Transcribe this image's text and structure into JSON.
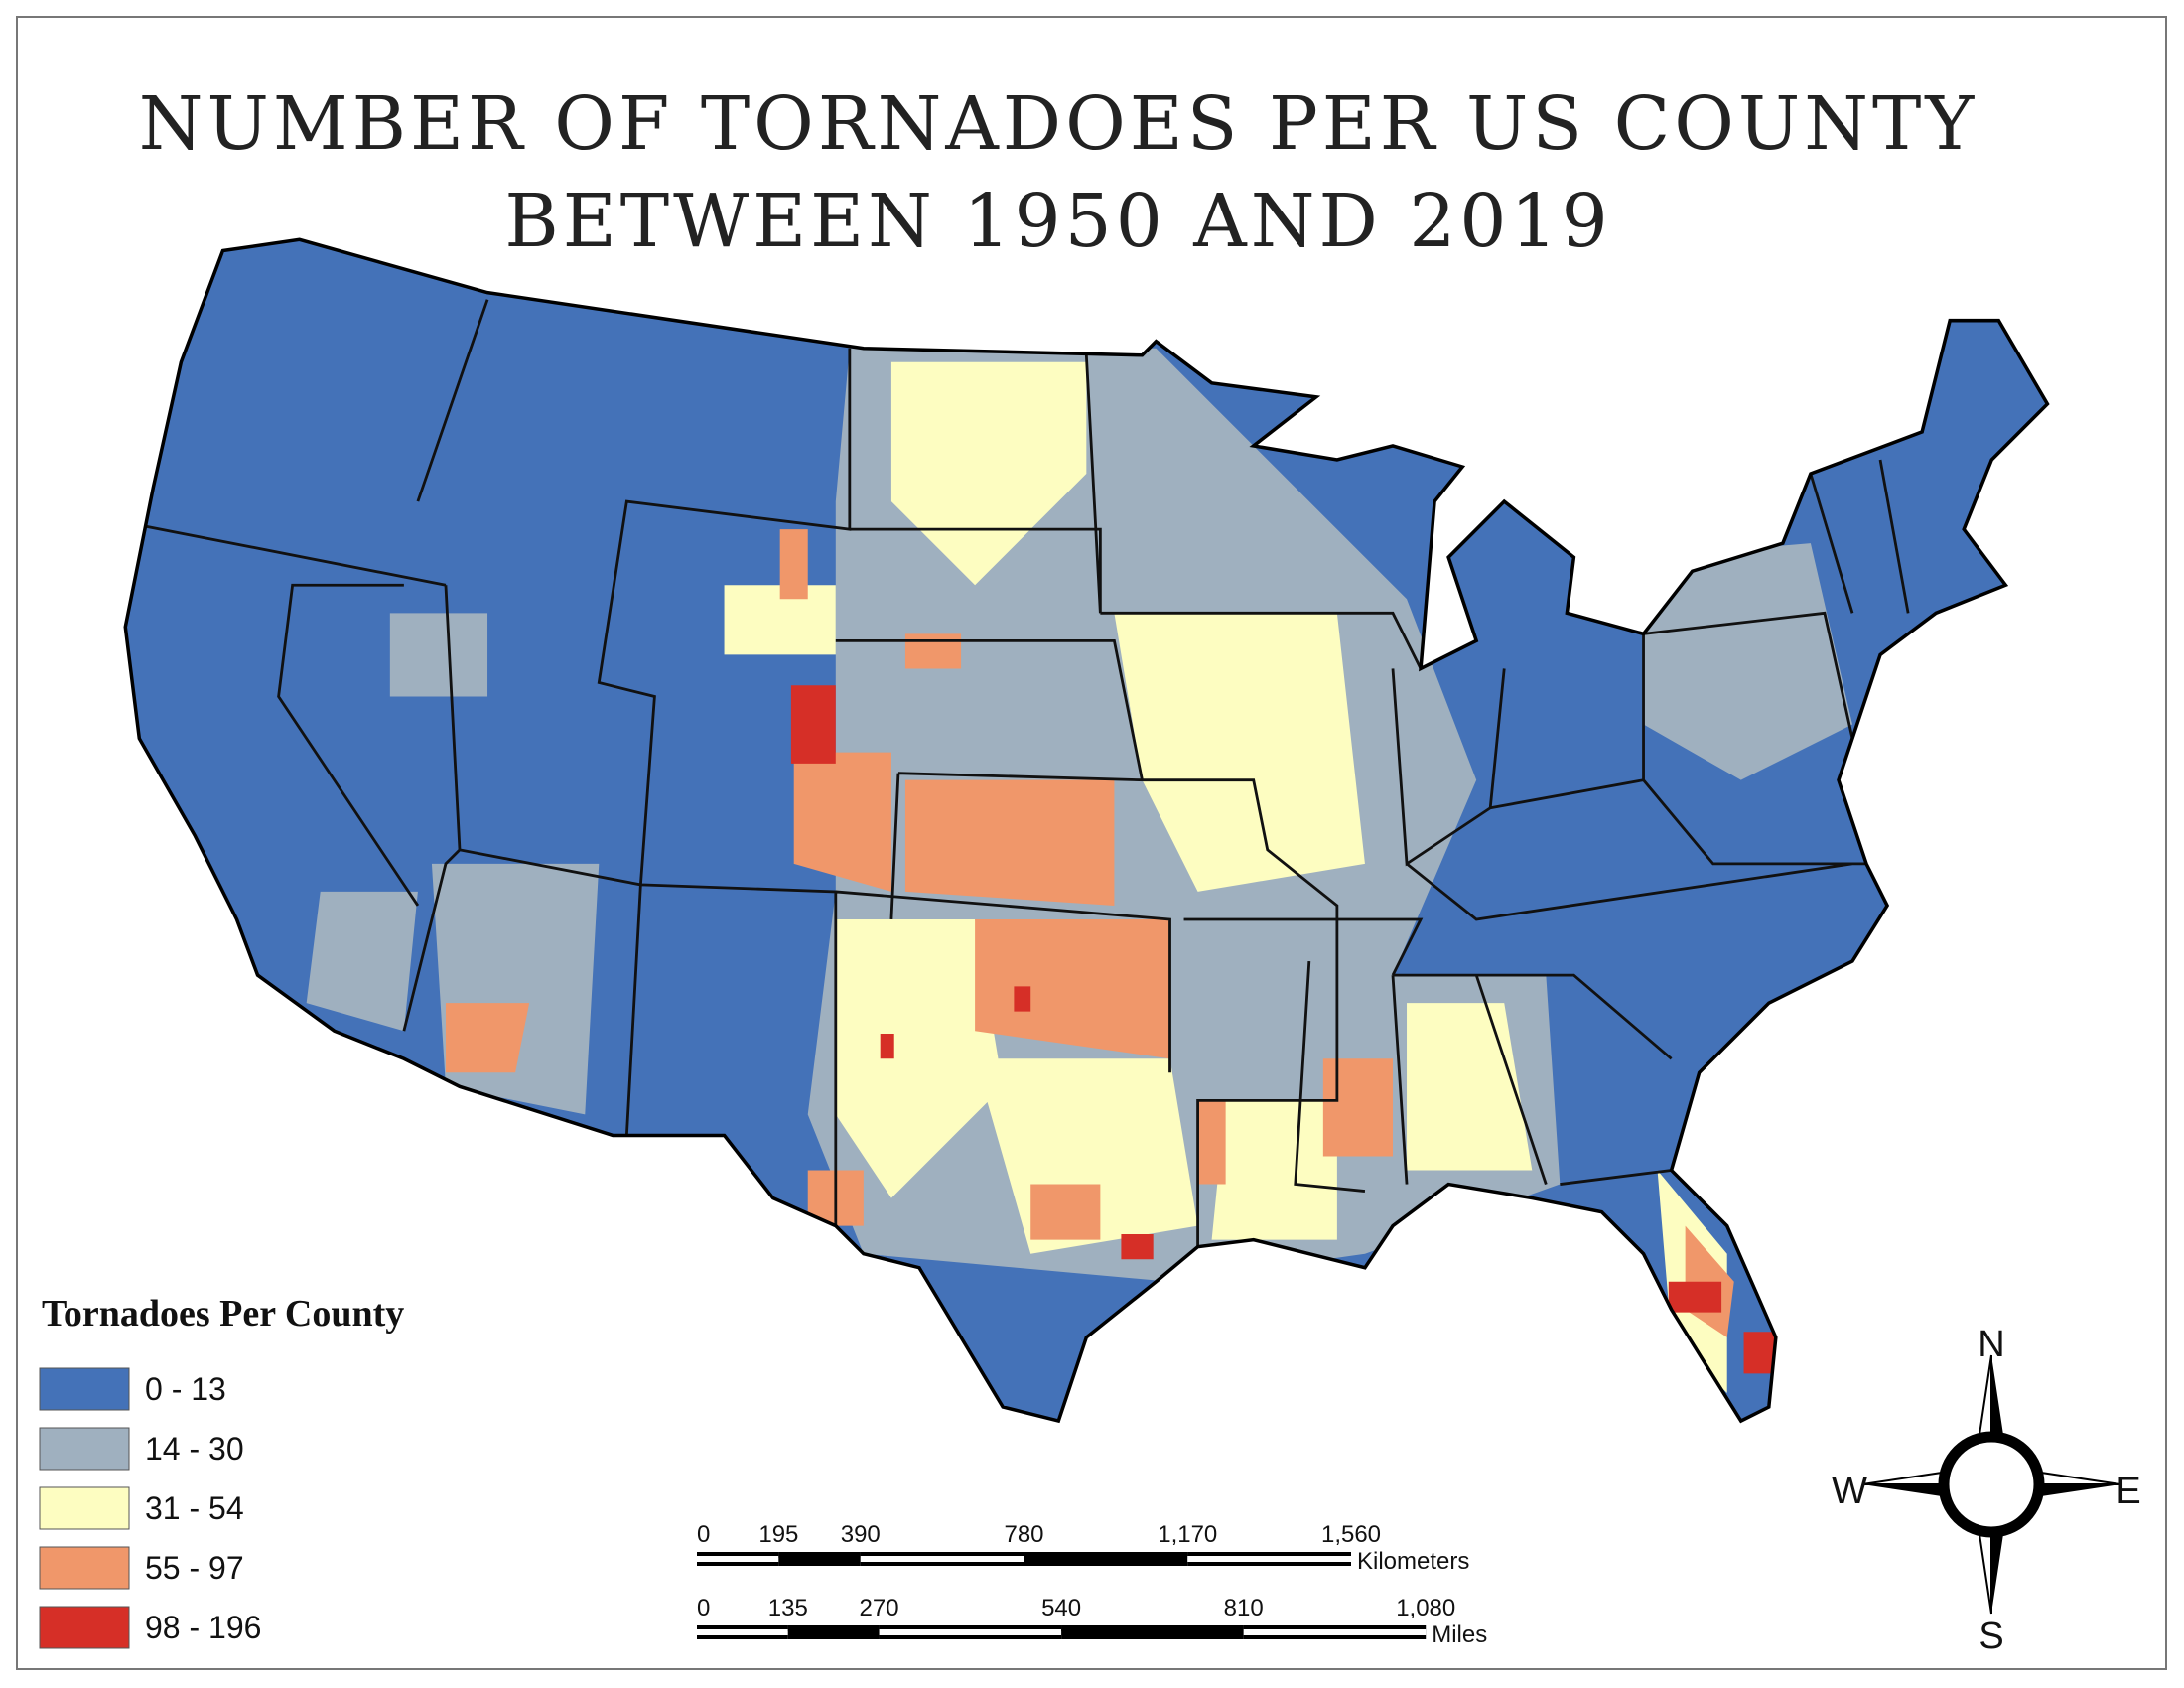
{
  "title": [
    "NUMBER OF TORNADOES PER US COUNTY",
    "BETWEEN 1950 AND 2019"
  ],
  "legend": {
    "title": "Tornadoes Per County",
    "items": [
      {
        "label": "0 - 13",
        "color": "#4472b8"
      },
      {
        "label": "14 - 30",
        "color": "#9fb0bf"
      },
      {
        "label": "31 - 54",
        "color": "#fdfdc1"
      },
      {
        "label": "55 - 97",
        "color": "#f0976a"
      },
      {
        "label": "98 - 196",
        "color": "#d62f27"
      }
    ]
  },
  "scale_bars": [
    {
      "unit": "Kilometers",
      "ticks": [
        {
          "value": 0,
          "label": "0"
        },
        {
          "value": 195,
          "label": "195"
        },
        {
          "value": 390,
          "label": "390"
        },
        {
          "value": 780,
          "label": "780"
        },
        {
          "value": 1170,
          "label": "1,170"
        },
        {
          "value": 1560,
          "label": "1,560"
        }
      ]
    },
    {
      "unit": "Miles",
      "ticks": [
        {
          "value": 0,
          "label": "0"
        },
        {
          "value": 135,
          "label": "135"
        },
        {
          "value": 270,
          "label": "270"
        },
        {
          "value": 540,
          "label": "540"
        },
        {
          "value": 810,
          "label": "810"
        },
        {
          "value": 1080,
          "label": "1,080"
        }
      ]
    }
  ],
  "compass": {
    "north": "N",
    "south": "S",
    "east": "E",
    "west": "W"
  }
}
